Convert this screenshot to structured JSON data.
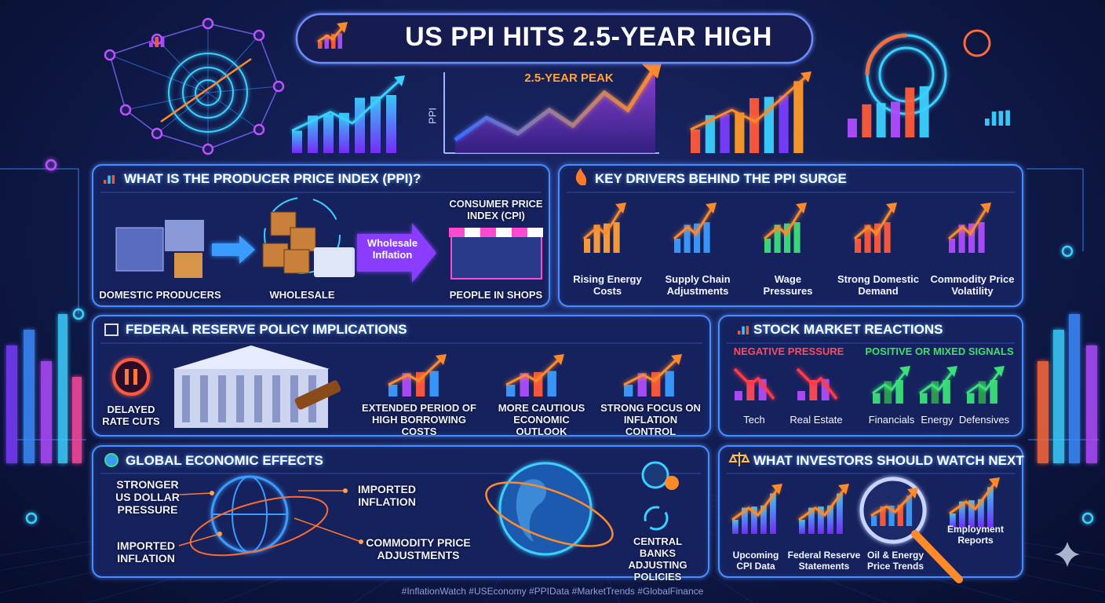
{
  "header": {
    "title": "US PPI HITS 2.5-YEAR HIGH",
    "chart_annotation": "2.5-YEAR PEAK",
    "chart_axis_label": "PPI"
  },
  "ppi_section": {
    "title": "WHAT IS THE PRODUCER PRICE INDEX (PPI)?",
    "steps": [
      "DOMESTIC PRODUCERS",
      "WHOLESALE",
      "PEOPLE IN SHOPS"
    ],
    "arrow_label": "Wholesale Inflation",
    "cpi_label": "CONSUMER PRICE INDEX (CPI)"
  },
  "drivers": {
    "title": "KEY DRIVERS BEHIND THE PPI SURGE",
    "items": [
      "Rising Energy Costs",
      "Supply Chain Adjustments",
      "Wage Pressures",
      "Strong Domestic Demand",
      "Commodity Price Volatility"
    ]
  },
  "fed": {
    "title": "FEDERAL RESERVE POLICY IMPLICATIONS",
    "items": [
      "DELAYED RATE CUTS",
      "EXTENDED PERIOD OF HIGH BORROWING COSTS",
      "MORE CAUTIOUS ECONOMIC OUTLOOK",
      "STRONG FOCUS ON INFLATION CONTROL"
    ]
  },
  "stock": {
    "title": "STOCK MARKET REACTIONS",
    "negative": {
      "heading": "NEGATIVE PRESSURE",
      "items": [
        "Tech",
        "Real Estate"
      ]
    },
    "positive": {
      "heading": "POSITIVE OR MIXED SIGNALS",
      "items": [
        "Financials",
        "Energy",
        "Defensives"
      ]
    }
  },
  "global": {
    "title": "GLOBAL ECONOMIC EFFECTS",
    "labels": [
      "STRONGER US DOLLAR PRESSURE",
      "IMPORTED INFLATION",
      "IMPORTED INFLATION",
      "COMMODITY PRICE ADJUSTMENTS",
      "CENTRAL BANKS ADJUSTING POLICIES"
    ]
  },
  "watch": {
    "title": "WHAT INVESTORS SHOULD WATCH NEXT",
    "items": [
      "Upcoming CPI Data",
      "Federal Reserve Statements",
      "Oil & Energy Price Trends",
      "Employment Reports"
    ]
  },
  "footer": {
    "hashtags": "#InflationWatch #USEconomy #PPIData #MarketTrends #GlobalFinance"
  }
}
